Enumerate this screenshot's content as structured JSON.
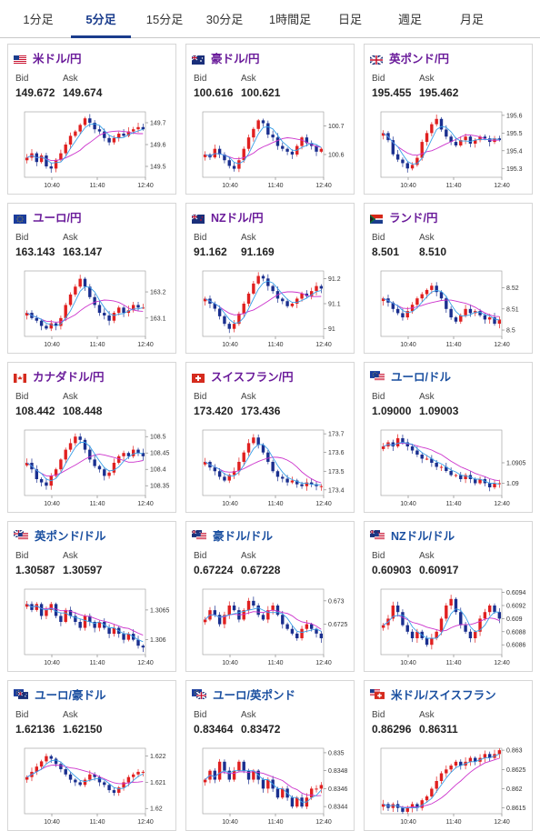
{
  "tabs": [
    {
      "label": "1分足",
      "active": false
    },
    {
      "label": "5分足",
      "active": true
    },
    {
      "label": "15分足",
      "active": false
    },
    {
      "label": "30分足",
      "active": false
    },
    {
      "label": "1時間足",
      "active": false
    },
    {
      "label": "日足",
      "active": false
    },
    {
      "label": "週足",
      "active": false
    },
    {
      "label": "月足",
      "active": false
    }
  ],
  "labels": {
    "bid": "Bid",
    "ask": "Ask"
  },
  "colors": {
    "up": "#e02020",
    "down": "#1a2f8f",
    "ma_short": "#3aa0e8",
    "ma_long": "#cc33cc",
    "pair_jpy": "#6a1b9a",
    "pair_usd": "#1a4fa0"
  },
  "pairs": [
    {
      "name": "米ドル/円",
      "flag": "us-flag-icon",
      "bid": "149.672",
      "ask": "149.674",
      "chart_data": {
        "type": "candlestick",
        "x_ticks": [
          "10:40",
          "11:40",
          "12:40"
        ],
        "y_ticks": [
          "149.7",
          "149.6",
          "149.5"
        ],
        "ylim": [
          149.45,
          149.75
        ],
        "path": [
          149.54,
          149.56,
          149.52,
          149.55,
          149.5,
          149.49,
          149.53,
          149.56,
          149.6,
          149.64,
          149.66,
          149.69,
          149.72,
          149.7,
          149.67,
          149.66,
          149.63,
          149.61,
          149.63,
          149.65,
          149.64,
          149.66,
          149.67,
          149.68,
          149.67
        ]
      }
    },
    {
      "name": "豪ドル/円",
      "flag": "au-flag-icon",
      "bid": "100.616",
      "ask": "100.621",
      "chart_data": {
        "type": "candlestick",
        "x_ticks": [
          "10:40",
          "11:40",
          "12:40"
        ],
        "y_ticks": [
          "100.7",
          "100.6"
        ],
        "ylim": [
          100.52,
          100.75
        ],
        "path": [
          100.6,
          100.59,
          100.62,
          100.6,
          100.58,
          100.56,
          100.55,
          100.58,
          100.62,
          100.66,
          100.69,
          100.72,
          100.71,
          100.67,
          100.66,
          100.63,
          100.62,
          100.61,
          100.6,
          100.63,
          100.66,
          100.64,
          100.63,
          100.61,
          100.62
        ]
      }
    },
    {
      "name": "英ポンド/円",
      "flag": "gb-flag-icon",
      "bid": "195.455",
      "ask": "195.462",
      "chart_data": {
        "type": "candlestick",
        "x_ticks": [
          "10:40",
          "11:40",
          "12:40"
        ],
        "y_ticks": [
          "195.6",
          "195.5",
          "195.4",
          "195.3"
        ],
        "ylim": [
          195.25,
          195.62
        ],
        "path": [
          195.5,
          195.46,
          195.38,
          195.35,
          195.33,
          195.3,
          195.32,
          195.36,
          195.45,
          195.5,
          195.55,
          195.58,
          195.52,
          195.48,
          195.45,
          195.43,
          195.46,
          195.48,
          195.44,
          195.46,
          195.48,
          195.47,
          195.45,
          195.47,
          195.46
        ]
      }
    },
    {
      "name": "ユーロ/円",
      "flag": "eu-flag-icon",
      "bid": "163.143",
      "ask": "163.147",
      "chart_data": {
        "type": "candlestick",
        "x_ticks": [
          "10:40",
          "11:40",
          "12:40"
        ],
        "y_ticks": [
          "163.2",
          "163.1"
        ],
        "ylim": [
          163.03,
          163.28
        ],
        "path": [
          163.12,
          163.1,
          163.09,
          163.07,
          163.06,
          163.08,
          163.07,
          163.1,
          163.15,
          163.19,
          163.22,
          163.25,
          163.22,
          163.18,
          163.15,
          163.12,
          163.11,
          163.09,
          163.12,
          163.14,
          163.12,
          163.13,
          163.15,
          163.14,
          163.14
        ]
      }
    },
    {
      "name": "NZドル/円",
      "flag": "nz-flag-icon",
      "bid": "91.162",
      "ask": "91.169",
      "chart_data": {
        "type": "candlestick",
        "x_ticks": [
          "10:40",
          "11:40",
          "12:40"
        ],
        "y_ticks": [
          "91.2",
          "91.1",
          "91"
        ],
        "ylim": [
          90.97,
          91.23
        ],
        "path": [
          91.12,
          91.1,
          91.08,
          91.05,
          91.02,
          91.0,
          91.02,
          91.06,
          91.1,
          91.14,
          91.18,
          91.21,
          91.2,
          91.17,
          91.15,
          91.12,
          91.11,
          91.09,
          91.1,
          91.12,
          91.14,
          91.13,
          91.15,
          91.17,
          91.16
        ]
      }
    },
    {
      "name": "ランド/円",
      "flag": "za-flag-icon",
      "bid": "8.501",
      "ask": "8.510",
      "chart_data": {
        "type": "candlestick",
        "x_ticks": [
          "10:40",
          "11:40",
          "12:40"
        ],
        "y_ticks": [
          "8.52",
          "8.51",
          "8.5"
        ],
        "ylim": [
          8.497,
          8.528
        ],
        "path": [
          8.515,
          8.513,
          8.51,
          8.508,
          8.506,
          8.509,
          8.512,
          8.515,
          8.517,
          8.519,
          8.521,
          8.518,
          8.515,
          8.51,
          8.506,
          8.504,
          8.507,
          8.51,
          8.508,
          8.509,
          8.507,
          8.505,
          8.506,
          8.503,
          8.505
        ]
      }
    },
    {
      "name": "カナダドル/円",
      "flag": "ca-flag-icon",
      "bid": "108.442",
      "ask": "108.448",
      "chart_data": {
        "type": "candlestick",
        "x_ticks": [
          "10:40",
          "11:40",
          "12:40"
        ],
        "y_ticks": [
          "108.5",
          "108.45",
          "108.4",
          "108.35"
        ],
        "ylim": [
          108.32,
          108.52
        ],
        "path": [
          108.42,
          108.4,
          108.37,
          108.36,
          108.35,
          108.38,
          108.4,
          108.43,
          108.46,
          108.48,
          108.5,
          108.49,
          108.46,
          108.43,
          108.41,
          108.4,
          108.38,
          108.39,
          108.42,
          108.44,
          108.45,
          108.44,
          108.46,
          108.45,
          108.44
        ]
      }
    },
    {
      "name": "スイスフラン/円",
      "flag": "ch-flag-icon",
      "bid": "173.420",
      "ask": "173.436",
      "chart_data": {
        "type": "candlestick",
        "x_ticks": [
          "10:40",
          "11:40",
          "12:40"
        ],
        "y_ticks": [
          "173.7",
          "173.6",
          "173.5",
          "173.4"
        ],
        "ylim": [
          173.37,
          173.72
        ],
        "path": [
          173.55,
          173.52,
          173.5,
          173.47,
          173.45,
          173.48,
          173.5,
          173.55,
          173.6,
          173.65,
          173.68,
          173.64,
          173.6,
          173.55,
          173.5,
          173.47,
          173.46,
          173.44,
          173.45,
          173.43,
          173.42,
          173.44,
          173.43,
          173.42,
          173.42
        ]
      }
    },
    {
      "name": "ユーロ/ドル",
      "flag": "eu-us-flag-icon",
      "bid": "1.09000",
      "ask": "1.09003",
      "chart_data": {
        "type": "candlestick",
        "x_ticks": [
          "10:40",
          "11:40",
          "12:40"
        ],
        "y_ticks": [
          "1.0905",
          "1.09"
        ],
        "ylim": [
          1.0897,
          1.0913
        ],
        "path": [
          1.0909,
          1.091,
          1.0909,
          1.0911,
          1.091,
          1.0909,
          1.0908,
          1.0907,
          1.0906,
          1.0906,
          1.0905,
          1.0904,
          1.0904,
          1.0903,
          1.0902,
          1.0902,
          1.0901,
          1.0902,
          1.0901,
          1.09,
          1.0901,
          1.09,
          1.0899,
          1.09,
          1.09
        ]
      }
    },
    {
      "name": "英ポンド/ドル",
      "flag": "gb-us-flag-icon",
      "bid": "1.30587",
      "ask": "1.30597",
      "chart_data": {
        "type": "candlestick",
        "x_ticks": [
          "10:40",
          "11:40",
          "12:40"
        ],
        "y_ticks": [
          "1.3065",
          "1.306"
        ],
        "ylim": [
          1.30575,
          1.30685
        ],
        "path": [
          1.3066,
          1.3065,
          1.3066,
          1.3064,
          1.3065,
          1.3066,
          1.3064,
          1.3063,
          1.3065,
          1.3064,
          1.3063,
          1.3062,
          1.3064,
          1.3063,
          1.3062,
          1.3063,
          1.3062,
          1.3061,
          1.3062,
          1.3061,
          1.306,
          1.3061,
          1.306,
          1.3059,
          1.30587
        ]
      }
    },
    {
      "name": "豪ドル/ドル",
      "flag": "au-us-flag-icon",
      "bid": "0.67224",
      "ask": "0.67228",
      "chart_data": {
        "type": "candlestick",
        "x_ticks": [
          "10:40",
          "11:40",
          "12:40"
        ],
        "y_ticks": [
          "0.673",
          "0.6725"
        ],
        "ylim": [
          0.67185,
          0.67325
        ],
        "path": [
          0.6726,
          0.6728,
          0.6727,
          0.6725,
          0.6727,
          0.6729,
          0.6728,
          0.6726,
          0.6728,
          0.673,
          0.6729,
          0.6727,
          0.6726,
          0.6728,
          0.6729,
          0.6727,
          0.6725,
          0.6724,
          0.6723,
          0.6722,
          0.6724,
          0.6725,
          0.6724,
          0.6723,
          0.6722
        ]
      }
    },
    {
      "name": "NZドル/ドル",
      "flag": "nz-us-flag-icon",
      "bid": "0.60903",
      "ask": "0.60917",
      "chart_data": {
        "type": "candlestick",
        "x_ticks": [
          "10:40",
          "11:40",
          "12:40"
        ],
        "y_ticks": [
          "0.6094",
          "0.6092",
          "0.609",
          "0.6088",
          "0.6086"
        ],
        "ylim": [
          0.60845,
          0.60945
        ],
        "path": [
          0.6089,
          0.609,
          0.6092,
          0.6091,
          0.6089,
          0.6088,
          0.6087,
          0.6088,
          0.6087,
          0.6086,
          0.6087,
          0.6088,
          0.609,
          0.6092,
          0.6093,
          0.6091,
          0.6089,
          0.6088,
          0.6087,
          0.6088,
          0.609,
          0.6091,
          0.6092,
          0.6091,
          0.609
        ]
      }
    },
    {
      "name": "ユーロ/豪ドル",
      "flag": "eu-au-flag-icon",
      "bid": "1.62136",
      "ask": "1.62150",
      "chart_data": {
        "type": "candlestick",
        "x_ticks": [
          "10:40",
          "11:40",
          "12:40"
        ],
        "y_ticks": [
          "1.622",
          "1.621",
          "1.62"
        ],
        "ylim": [
          1.6198,
          1.6223
        ],
        "path": [
          1.6212,
          1.6214,
          1.6216,
          1.6218,
          1.622,
          1.6219,
          1.6217,
          1.6215,
          1.6213,
          1.6211,
          1.621,
          1.6209,
          1.6211,
          1.6213,
          1.6212,
          1.621,
          1.6209,
          1.6207,
          1.6206,
          1.6208,
          1.621,
          1.6212,
          1.6213,
          1.6214,
          1.6214
        ]
      }
    },
    {
      "name": "ユーロ/英ポンド",
      "flag": "eu-gb-flag-icon",
      "bid": "0.83464",
      "ask": "0.83472",
      "chart_data": {
        "type": "candlestick",
        "x_ticks": [
          "10:40",
          "11:40",
          "12:40"
        ],
        "y_ticks": [
          "0.835",
          "0.8348",
          "0.8346",
          "0.8344"
        ],
        "ylim": [
          0.83432,
          0.83505
        ],
        "path": [
          0.8347,
          0.8348,
          0.8347,
          0.8349,
          0.8348,
          0.8347,
          0.8348,
          0.8349,
          0.8348,
          0.8347,
          0.8348,
          0.8347,
          0.8346,
          0.8347,
          0.8346,
          0.8345,
          0.8346,
          0.8345,
          0.8344,
          0.8345,
          0.8344,
          0.8345,
          0.8346,
          0.8346,
          0.83464
        ]
      }
    },
    {
      "name": "米ドル/スイスフラン",
      "flag": "us-ch-flag-icon",
      "bid": "0.86296",
      "ask": "0.86311",
      "chart_data": {
        "type": "candlestick",
        "x_ticks": [
          "10:40",
          "11:40",
          "12:40"
        ],
        "y_ticks": [
          "0.863",
          "0.8625",
          "0.862",
          "0.8615"
        ],
        "ylim": [
          0.86135,
          0.86305
        ],
        "path": [
          0.8616,
          0.8615,
          0.8616,
          0.8615,
          0.8614,
          0.8615,
          0.8616,
          0.8615,
          0.8617,
          0.8618,
          0.862,
          0.8622,
          0.8624,
          0.8625,
          0.8626,
          0.8627,
          0.8626,
          0.8627,
          0.8628,
          0.8627,
          0.8628,
          0.8629,
          0.8628,
          0.8629,
          0.863
        ]
      }
    }
  ]
}
